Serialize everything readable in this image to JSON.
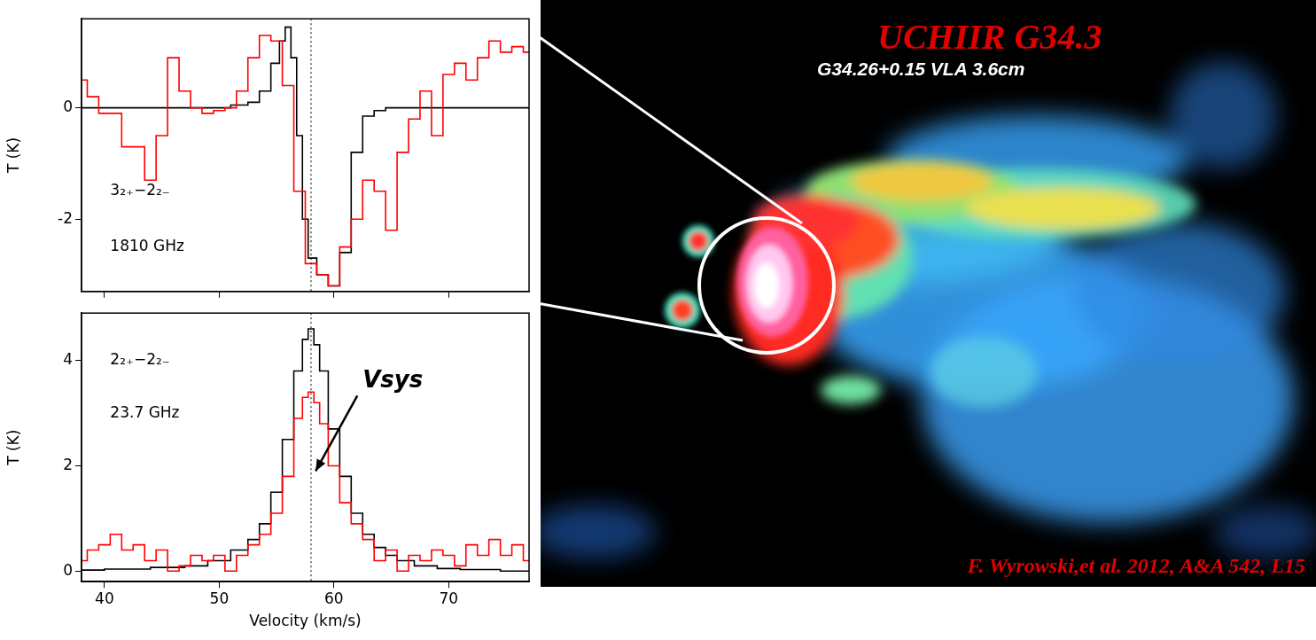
{
  "chart_data": [
    {
      "type": "line",
      "y_label": "T (K)",
      "xlim": [
        38,
        77
      ],
      "xticks": [
        40,
        50,
        60,
        70
      ],
      "ylim": [
        -3.3,
        1.6
      ],
      "yticks": [
        -2,
        0
      ],
      "tick_labels": "y",
      "reference_lines": [
        {
          "x": 58
        }
      ],
      "annotations": [
        {
          "text": "3₂₊−2₂₋",
          "x": 40.5,
          "y": -1.5
        },
        {
          "text": "1810 GHz",
          "x": 40.5,
          "y": -2.5
        }
      ],
      "series": [
        {
          "color": "#ff0000",
          "line_style": "steps",
          "x": [
            38,
            39,
            40,
            41,
            42,
            43,
            44,
            45,
            46,
            47,
            48,
            49,
            50,
            51,
            52,
            53,
            54,
            55,
            56,
            57,
            58,
            59,
            60,
            61,
            62,
            63,
            64,
            65,
            66,
            67,
            68,
            69,
            70,
            71,
            72,
            73,
            74,
            75,
            76,
            77
          ],
          "values": [
            0.5,
            0.2,
            -0.1,
            -0.1,
            -0.7,
            -0.7,
            -1.3,
            -0.5,
            0.9,
            0.3,
            0.0,
            -0.1,
            -0.05,
            0.0,
            0.3,
            0.9,
            1.3,
            1.2,
            0.4,
            -1.5,
            -2.8,
            -3.0,
            -3.2,
            -2.5,
            -2.0,
            -1.3,
            -1.5,
            -2.2,
            -0.8,
            -0.2,
            0.3,
            -0.5,
            0.6,
            0.8,
            0.5,
            0.9,
            1.2,
            1.0,
            1.1,
            1.0
          ]
        },
        {
          "color": "#000000",
          "line_style": "steps",
          "x": [
            38,
            40,
            45,
            50,
            52,
            53,
            54,
            55,
            55.5,
            56,
            56.5,
            57,
            57.5,
            58,
            59,
            60,
            61,
            62,
            63,
            64,
            65,
            70,
            77
          ],
          "values": [
            0,
            0,
            0,
            0,
            0.05,
            0.1,
            0.3,
            0.8,
            1.2,
            1.45,
            0.9,
            -0.5,
            -2.0,
            -2.7,
            -3.0,
            -3.2,
            -2.6,
            -0.8,
            -0.15,
            -0.05,
            0,
            0,
            0
          ]
        }
      ]
    },
    {
      "type": "line",
      "x_label": "Velocity (km/s)",
      "y_label": "T (K)",
      "xlim": [
        38,
        77
      ],
      "xticks": [
        40,
        50,
        60,
        70
      ],
      "ylim": [
        -0.2,
        4.9
      ],
      "yticks": [
        0,
        2,
        4
      ],
      "reference_lines": [
        {
          "x": 58
        }
      ],
      "annotations": [
        {
          "text": "2₂₊−2₂₋",
          "x": 40.5,
          "y": 4.0
        },
        {
          "text": "23.7 GHz",
          "x": 40.5,
          "y": 3.0
        },
        {
          "text": "Vsys",
          "x": 62.5,
          "y": 3.6,
          "arrow_to": {
            "x": 58.4,
            "y": 1.9
          }
        }
      ],
      "series": [
        {
          "color": "#ff0000",
          "line_style": "steps",
          "x": [
            38,
            39,
            40,
            41,
            42,
            43,
            44,
            45,
            46,
            47,
            48,
            49,
            50,
            51,
            52,
            53,
            54,
            55,
            56,
            57,
            57.5,
            58,
            58.5,
            59,
            60,
            61,
            62,
            63,
            64,
            65,
            66,
            67,
            68,
            69,
            70,
            71,
            72,
            73,
            74,
            75,
            76,
            77
          ],
          "values": [
            0.2,
            0.4,
            0.5,
            0.7,
            0.4,
            0.5,
            0.2,
            0.4,
            0.0,
            0.1,
            0.3,
            0.2,
            0.3,
            0.0,
            0.3,
            0.5,
            0.7,
            1.1,
            1.8,
            2.9,
            3.3,
            3.4,
            3.2,
            2.8,
            2.0,
            1.3,
            0.9,
            0.6,
            0.2,
            0.4,
            0.0,
            0.3,
            0.2,
            0.4,
            0.3,
            0.1,
            0.5,
            0.3,
            0.6,
            0.3,
            0.5,
            0.2
          ]
        },
        {
          "color": "#000000",
          "line_style": "steps",
          "x": [
            38,
            42,
            46,
            48,
            50,
            52,
            53,
            54,
            55,
            56,
            57,
            57.5,
            58,
            58.5,
            59,
            60,
            61,
            62,
            63,
            64,
            65,
            66,
            68,
            70,
            72,
            77
          ],
          "values": [
            0.02,
            0.04,
            0.07,
            0.1,
            0.2,
            0.4,
            0.6,
            0.9,
            1.5,
            2.5,
            3.8,
            4.4,
            4.6,
            4.3,
            3.8,
            2.7,
            1.8,
            1.1,
            0.7,
            0.45,
            0.3,
            0.2,
            0.1,
            0.05,
            0.03,
            0.0
          ]
        }
      ]
    }
  ],
  "image": {
    "title": "UCHIIR G34.3",
    "subtitle": "G34.26+0.15 VLA 3.6cm",
    "credit": "F. Wyrowski,et al. 2012, A&A 542, L15"
  }
}
